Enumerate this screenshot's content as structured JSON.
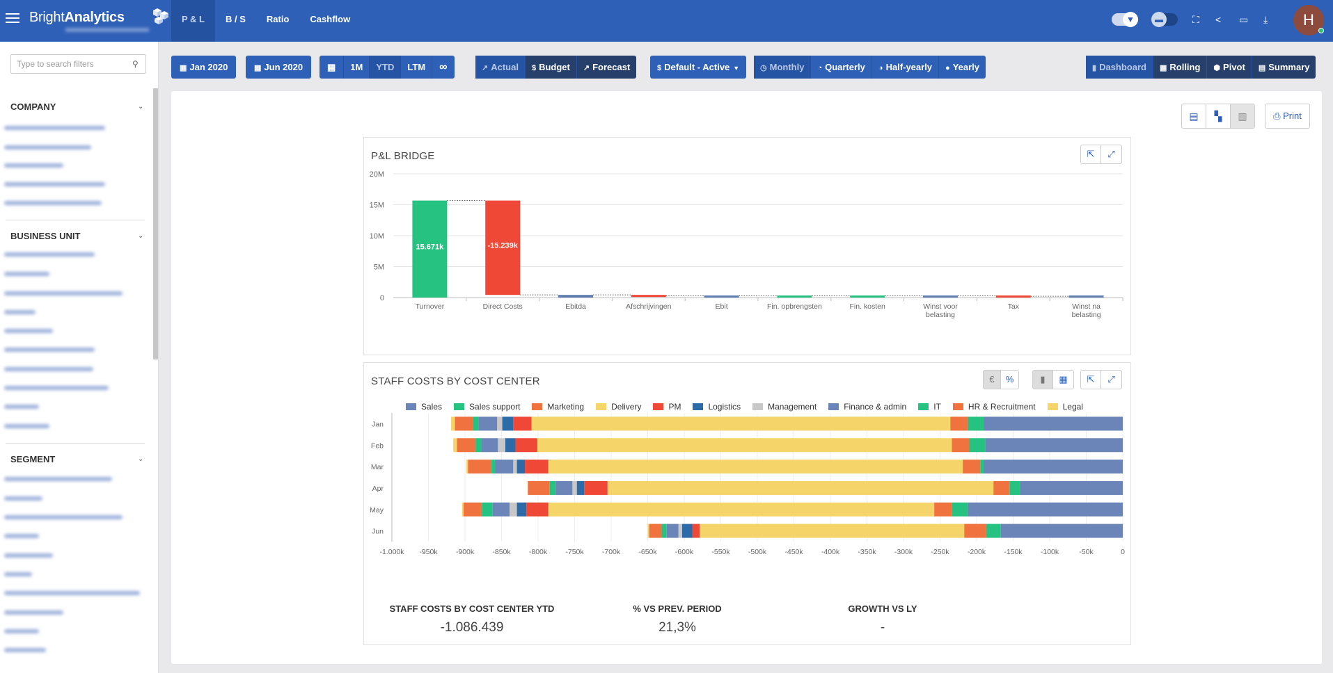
{
  "app": {
    "brand_light": "Bright",
    "brand_bold": "Analytics"
  },
  "nav": {
    "tabs": [
      {
        "label": "P & L"
      },
      {
        "label": "B / S"
      },
      {
        "label": "Ratio"
      },
      {
        "label": "Cashflow"
      }
    ]
  },
  "user": {
    "initial": "H"
  },
  "sidebar": {
    "search_placeholder": "Type to search filters",
    "sections": [
      {
        "title": "COMPANY"
      },
      {
        "title": "BUSINESS UNIT"
      },
      {
        "title": "SEGMENT"
      }
    ]
  },
  "toolbar": {
    "from_date": "Jan 2020",
    "to_date": "Jun 2020",
    "periods": [
      "1M",
      "YTD",
      "LTM"
    ],
    "scenarios": [
      "Actual",
      "Budget",
      "Forecast"
    ],
    "layout_select": "Default - Active",
    "granularity": [
      "Monthly",
      "Quarterly",
      "Half-yearly",
      "Yearly"
    ],
    "views": [
      "Dashboard",
      "Rolling",
      "Pivot",
      "Summary"
    ],
    "print_label": "Print"
  },
  "bridge": {
    "title": "P&L BRIDGE",
    "chart_data": {
      "type": "bar",
      "subtype": "waterfall",
      "categories": [
        "Turnover",
        "Direct Costs",
        "Ebitda",
        "Afschrijvingen",
        "Ebit",
        "Fin. opbrengsten",
        "Fin. kosten",
        "Winst voor belasting",
        "Tax",
        "Winst na belasting"
      ],
      "values": [
        15671,
        -15239,
        432,
        -142,
        290,
        0,
        0,
        290,
        -73,
        217
      ],
      "data_labels": [
        "15.671k",
        "-15.239k",
        "",
        "",
        "",
        "",
        "",
        "",
        "",
        ""
      ],
      "y_ticks": [
        "0",
        "5M",
        "10M",
        "15M",
        "20M"
      ],
      "ylim": [
        0,
        20000
      ],
      "colors": {
        "positive": "#26c281",
        "negative": "#ef4836",
        "total": "#5f7fb3"
      },
      "grid": true
    }
  },
  "staff": {
    "title": "STAFF COSTS BY COST CENTER",
    "toggles": [
      "€",
      "%"
    ],
    "chart_data": {
      "type": "bar",
      "orientation": "horizontal",
      "stacked": true,
      "categories": [
        "Jan",
        "Feb",
        "Mar",
        "Apr",
        "May",
        "Jun"
      ],
      "series": [
        {
          "name": "Sales",
          "color": "#6b85b8",
          "values": [
            -190,
            -188,
            -190,
            -140,
            -212,
            -167
          ]
        },
        {
          "name": "Sales support",
          "color": "#26c281",
          "values": [
            -22,
            -22,
            -5,
            -15,
            -22,
            -20
          ]
        },
        {
          "name": "Marketing",
          "color": "#f0733f",
          "values": [
            -24,
            -24,
            -24,
            -22,
            -24,
            -30
          ]
        },
        {
          "name": "Delivery",
          "color": "#f5d56a",
          "values": [
            -573,
            -567,
            -567,
            -528,
            -528,
            -362
          ]
        },
        {
          "name": "PM",
          "color": "#ef4836",
          "values": [
            -25,
            -30,
            -32,
            -32,
            -30,
            -10
          ]
        },
        {
          "name": "Logistics",
          "color": "#2c6aa8",
          "values": [
            -15,
            -14,
            -11,
            -10,
            -13,
            -14
          ]
        },
        {
          "name": "Management",
          "color": "#c8c8c8",
          "values": [
            -7,
            -10,
            -5,
            -6,
            -10,
            -5
          ]
        },
        {
          "name": "Finance & admin",
          "color": "#6b85b8",
          "values": [
            -25,
            -23,
            -25,
            -23,
            -23,
            -16
          ]
        },
        {
          "name": "IT",
          "color": "#26c281",
          "values": [
            -8,
            -8,
            -5,
            -8,
            -15,
            -7
          ]
        },
        {
          "name": "HR & Recruitment",
          "color": "#f0733f",
          "values": [
            -25,
            -25,
            -32,
            -30,
            -25,
            -17
          ]
        },
        {
          "name": "Legal",
          "color": "#f5d56a",
          "values": [
            -5,
            -5,
            -2,
            0,
            -2,
            -2
          ]
        }
      ],
      "x_ticks": [
        "-1.000k",
        "-950k",
        "-900k",
        "-850k",
        "-800k",
        "-750k",
        "-700k",
        "-650k",
        "-600k",
        "-550k",
        "-500k",
        "-450k",
        "-400k",
        "-350k",
        "-300k",
        "-250k",
        "-200k",
        "-150k",
        "-100k",
        "-50k",
        "0"
      ],
      "xlim": [
        -1000,
        0
      ]
    },
    "kpis": [
      {
        "label": "STAFF COSTS BY COST CENTER YTD",
        "value": "-1.086.439"
      },
      {
        "label": "% VS PREV. PERIOD",
        "value": "21,3%"
      },
      {
        "label": "GROWTH VS LY",
        "value": "-"
      }
    ]
  }
}
